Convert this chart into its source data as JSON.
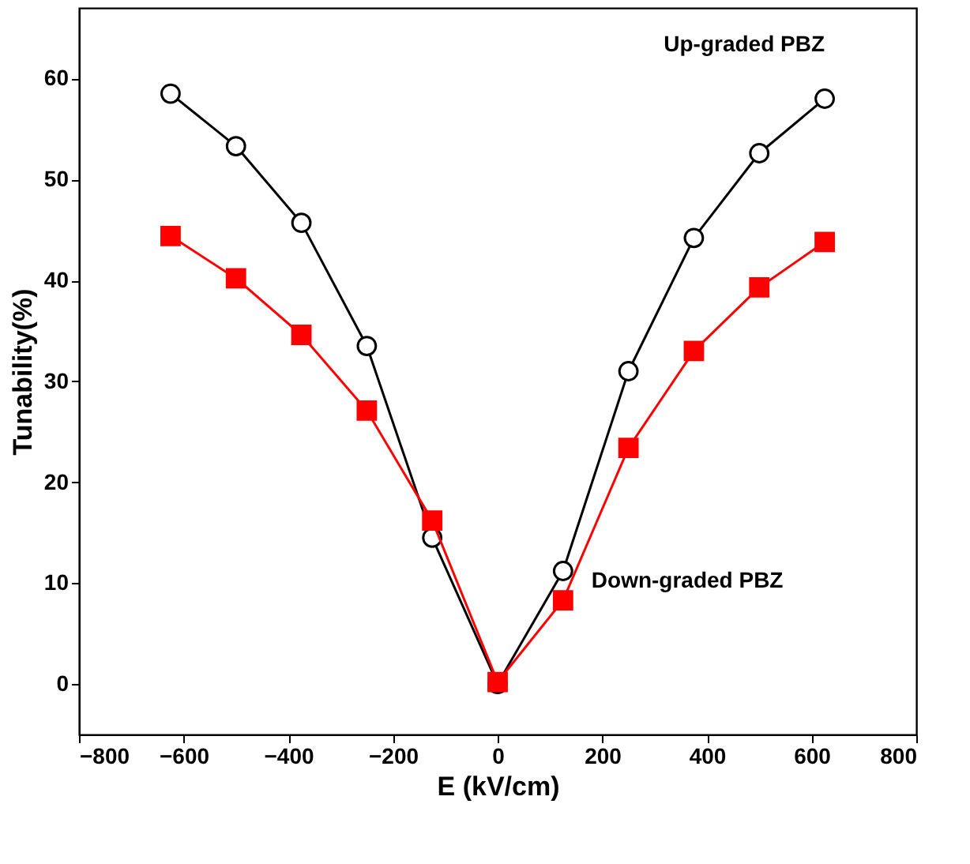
{
  "chart_data": {
    "type": "line",
    "xlabel": "E (kV/cm)",
    "ylabel": "Tunability(%)",
    "x": [
      -625,
      -500,
      -375,
      -250,
      -125,
      0,
      125,
      250,
      375,
      500,
      625
    ],
    "series": [
      {
        "name": "Up-graded PBZ",
        "color": "#000000",
        "marker": "circle",
        "values": [
          58.5,
          53.3,
          45.7,
          33.5,
          14.5,
          0,
          11.2,
          31,
          44.2,
          52.6,
          58
        ]
      },
      {
        "name": "Down-graded PBZ",
        "color": "#ff0000",
        "marker": "square",
        "values": [
          44.4,
          40.2,
          34.6,
          27.1,
          16.2,
          0.2,
          8.3,
          23.4,
          33,
          39.3,
          43.8
        ]
      }
    ],
    "xlim": [
      -800,
      800
    ],
    "xticks": [
      -800,
      -600,
      -400,
      -200,
      0,
      200,
      400,
      600,
      800
    ],
    "ylim": [
      -5,
      67
    ],
    "yticks": [
      0,
      10,
      20,
      30,
      40,
      50,
      60
    ],
    "grid": false,
    "line_style": "solid"
  }
}
